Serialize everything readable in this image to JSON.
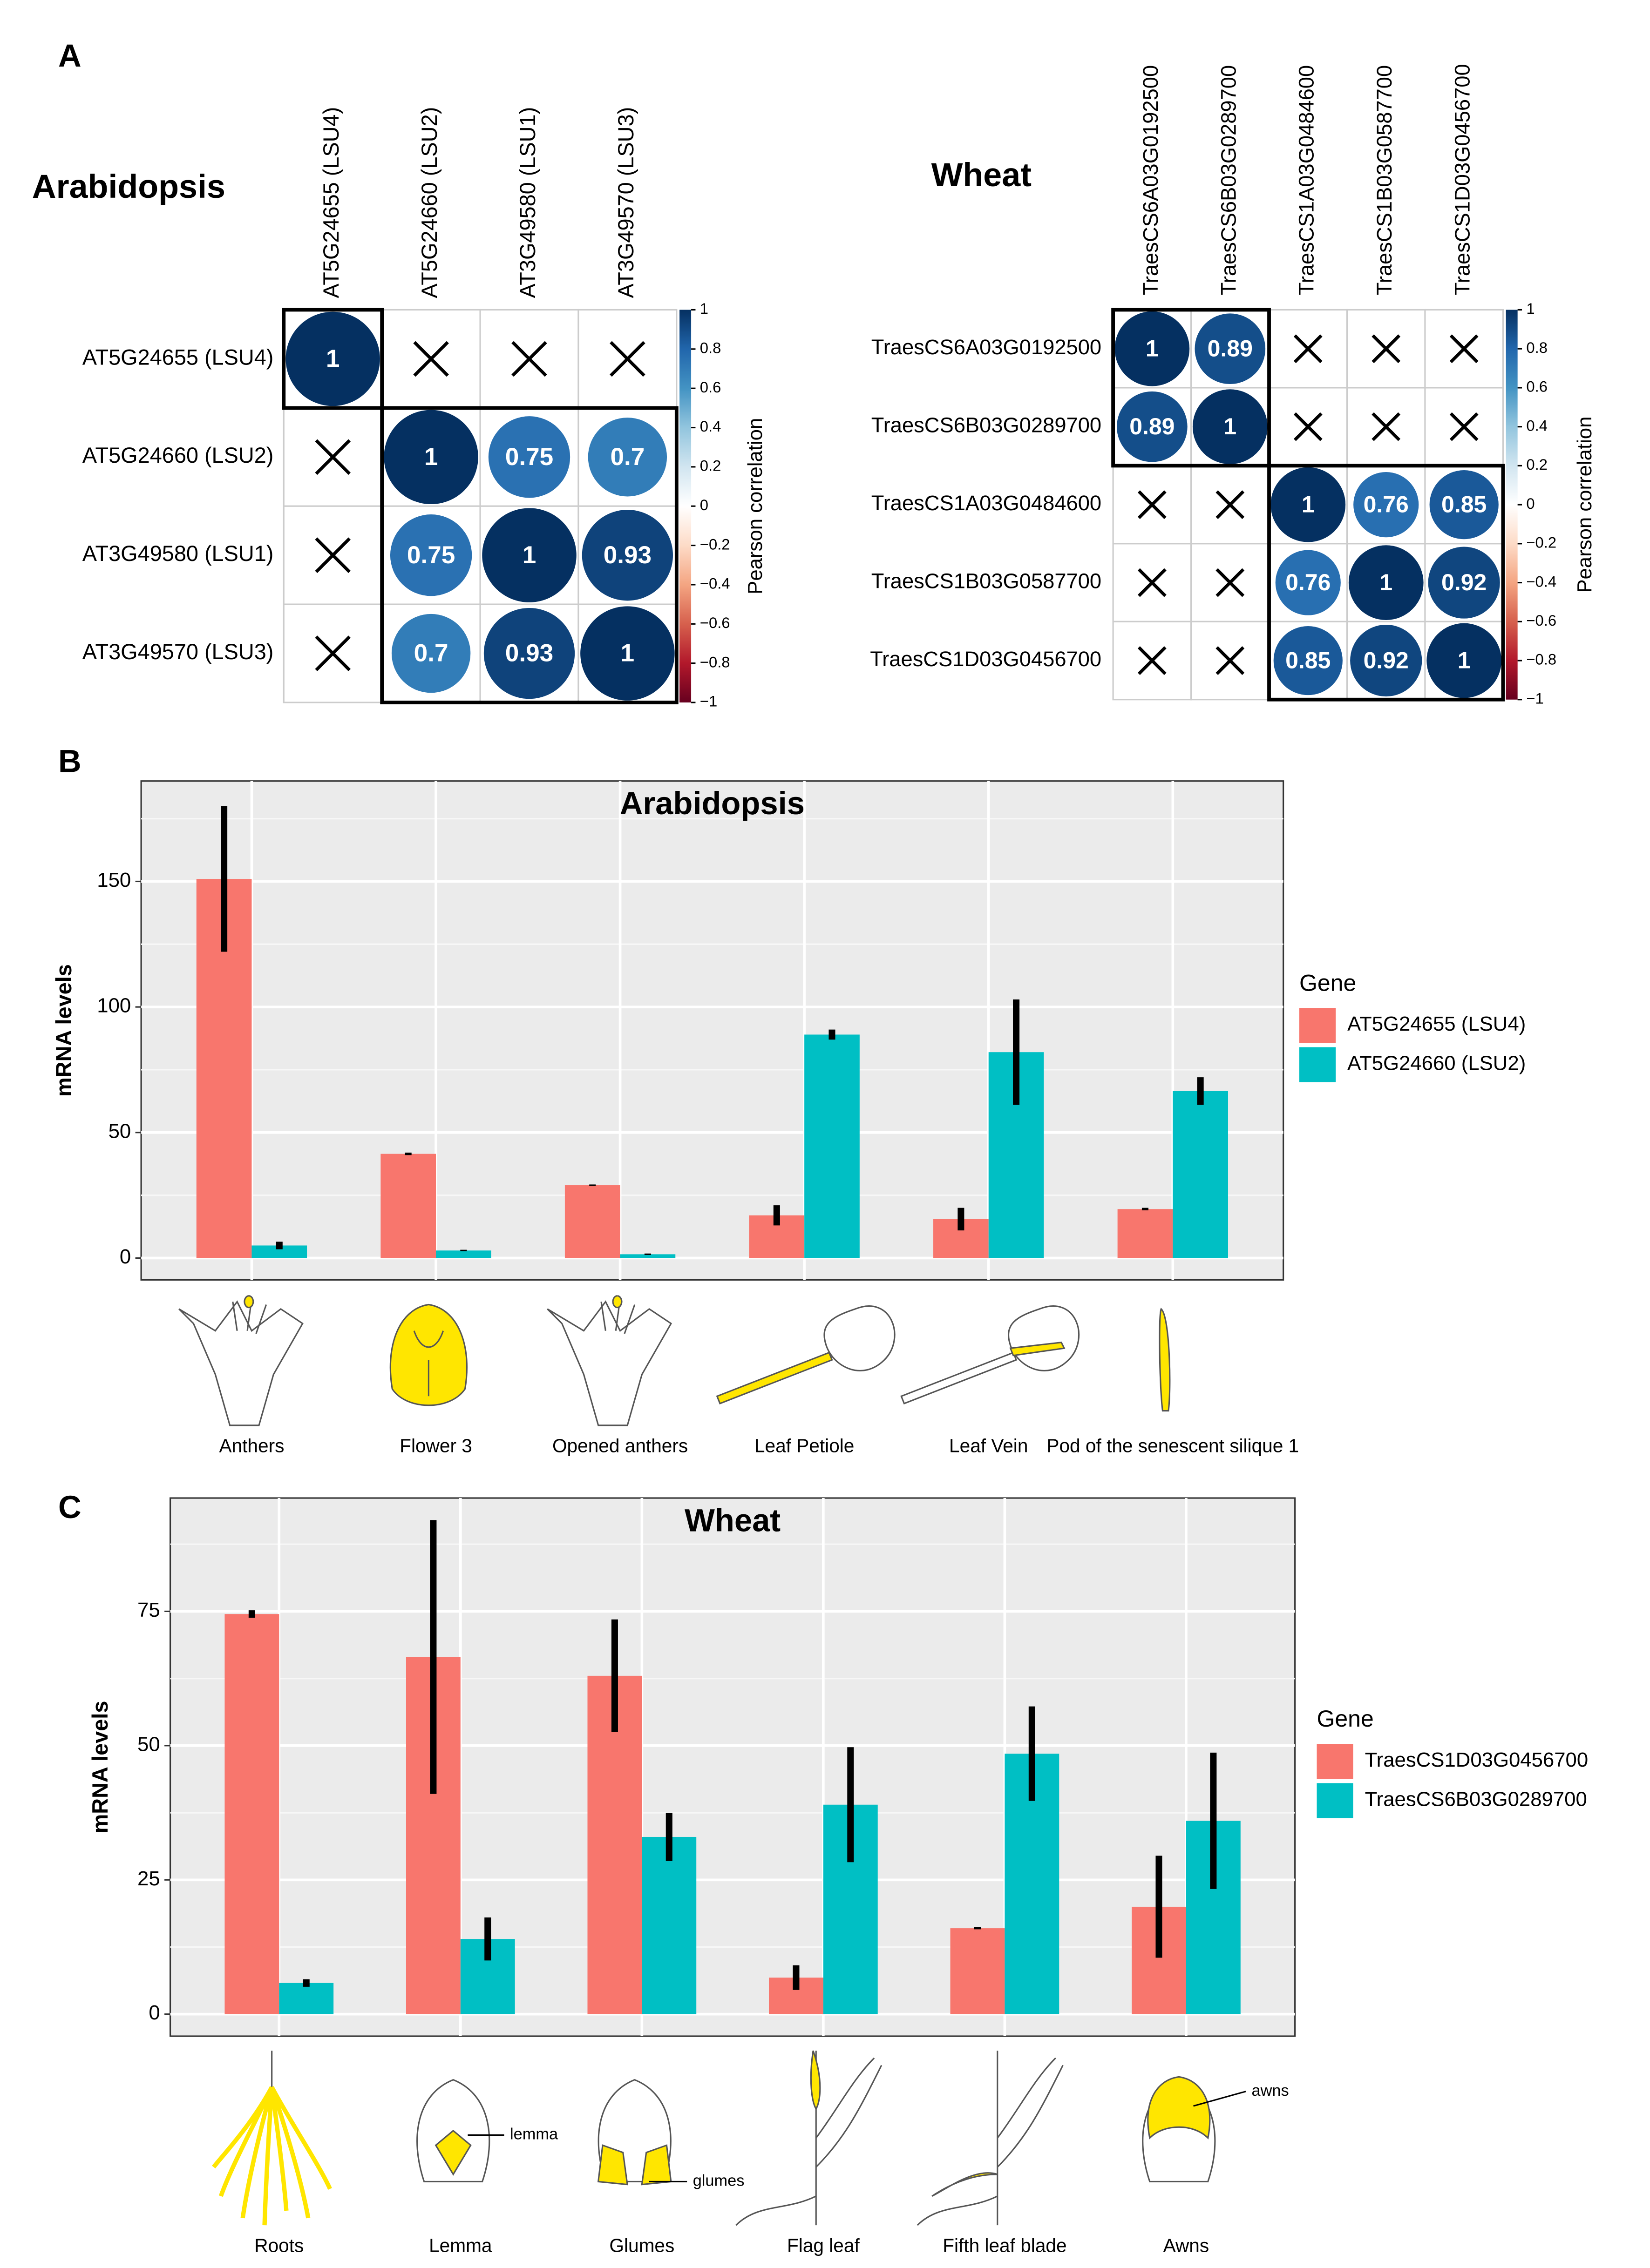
{
  "chart_data": [
    {
      "type": "corrplot",
      "panel": "A",
      "title": "Arabidopsis",
      "labels": [
        "AT5G24655 (LSU4)",
        "AT5G24660 (LSU2)",
        "AT3G49580 (LSU1)",
        "AT3G49570 (LSU3)"
      ],
      "matrix": [
        [
          1,
          null,
          null,
          null
        ],
        [
          null,
          1,
          0.75,
          0.7
        ],
        [
          null,
          0.75,
          1,
          0.93
        ],
        [
          null,
          0.7,
          0.93,
          1
        ]
      ],
      "clusters": [
        [
          0,
          0
        ],
        [
          1,
          3
        ]
      ],
      "colorbar_label": "Pearson correlation",
      "clim": [
        -1,
        1
      ],
      "cticks": [
        1,
        0.8,
        0.6,
        0.4,
        0.2,
        0,
        {
          "value": -0.2,
          "label": "−0.2"
        },
        {
          "value": -0.4,
          "label": "−0.4"
        },
        {
          "value": -0.6,
          "label": "−0.6"
        },
        {
          "value": -0.8,
          "label": "−0.8"
        },
        {
          "value": -1,
          "label": "−1"
        }
      ]
    },
    {
      "type": "corrplot",
      "title": "Wheat",
      "labels": [
        "TraesCS6A03G0192500",
        "TraesCS6B03G0289700",
        "TraesCS1A03G0484600",
        "TraesCS1B03G0587700",
        "TraesCS1D03G0456700"
      ],
      "matrix": [
        [
          1,
          0.89,
          null,
          null,
          null
        ],
        [
          0.89,
          1,
          null,
          null,
          null
        ],
        [
          null,
          null,
          1,
          0.76,
          0.85
        ],
        [
          null,
          null,
          0.76,
          1,
          0.92
        ],
        [
          null,
          null,
          0.85,
          0.92,
          1
        ]
      ],
      "clusters": [
        [
          0,
          1
        ],
        [
          2,
          4
        ]
      ],
      "colorbar_label": "Pearson correlation",
      "clim": [
        -1,
        1
      ],
      "cticks": [
        1,
        0.8,
        0.6,
        0.4,
        0.2,
        0,
        {
          "value": -0.2,
          "label": "−0.2"
        },
        {
          "value": -0.4,
          "label": "−0.4"
        },
        {
          "value": -0.6,
          "label": "−0.6"
        },
        {
          "value": -0.8,
          "label": "−0.8"
        },
        {
          "value": -1,
          "label": "−1"
        }
      ]
    },
    {
      "type": "bar",
      "panel": "B",
      "title": "Arabidopsis",
      "ylabel": "mRNA levels",
      "legend_title": "Gene",
      "categories": [
        "Anthers",
        "Flower 3",
        "Opened anthers",
        "Leaf Petiole",
        "Leaf Vein",
        "Pod of the senescent silique 1"
      ],
      "series": [
        {
          "name": "AT5G24655 (LSU4)",
          "color": "#F8766D",
          "values": [
            151,
            41.5,
            29,
            17,
            15.5,
            19.5
          ],
          "errors": [
            29,
            0.5,
            0.3,
            4,
            4.5,
            0.5
          ]
        },
        {
          "name": "AT5G24660 (LSU2)",
          "color": "#00BFC4",
          "values": [
            5,
            3,
            1.5,
            89,
            82,
            66.5
          ],
          "errors": [
            1.5,
            0.3,
            0.3,
            2,
            21,
            5.5
          ]
        }
      ],
      "ylim": [
        -8.7,
        190
      ],
      "yticks": [
        0,
        50,
        100,
        150
      ],
      "grid": true
    },
    {
      "type": "bar",
      "panel": "C",
      "title": "Wheat",
      "ylabel": "mRNA levels",
      "legend_title": "Gene",
      "categories": [
        "Roots",
        "Lemma",
        "Glumes",
        "Flag leaf",
        "Fifth leaf blade",
        "Awns"
      ],
      "series": [
        {
          "name": "TraesCS1D03G0456700",
          "color": "#F8766D",
          "values": [
            74.5,
            66.5,
            63,
            6.8,
            16,
            20
          ],
          "errors": [
            0.7,
            25.5,
            10.5,
            2.3,
            0.2,
            9.5
          ]
        },
        {
          "name": "TraesCS6B03G0289700",
          "color": "#00BFC4",
          "values": [
            5.8,
            14,
            33,
            39,
            48.5,
            36
          ],
          "errors": [
            0.7,
            4,
            4.5,
            10.7,
            8.8,
            12.7
          ]
        }
      ],
      "ylim": [
        -4.1,
        96.1
      ],
      "yticks": [
        0,
        25,
        50,
        75
      ],
      "grid": true,
      "annotations": [
        "lemma",
        "glumes",
        "awns"
      ]
    }
  ]
}
